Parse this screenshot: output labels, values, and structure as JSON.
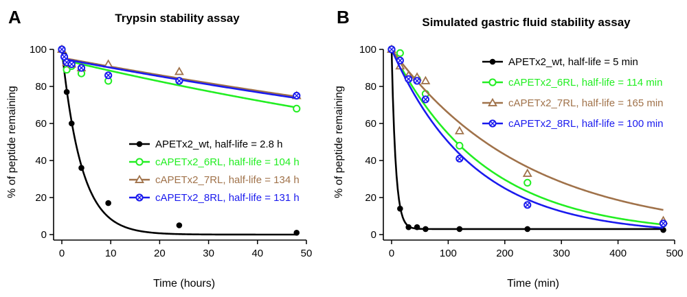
{
  "colors": {
    "wt": "#000000",
    "6RL": "#22ee22",
    "7RL": "#a0724a",
    "8RL": "#1a1aee",
    "axis": "#000000"
  },
  "chart_data": [
    {
      "type": "scatter",
      "panel_label": "A",
      "title": "Trypsin stability assay",
      "xlabel": "Time (hours)",
      "ylabel": "% of peptide remaining",
      "xlim": [
        0,
        50
      ],
      "ylim": [
        0,
        100
      ],
      "xticks": [
        0,
        10,
        20,
        30,
        40,
        50
      ],
      "yticks": [
        0,
        20,
        40,
        60,
        80,
        100
      ],
      "grid": false,
      "legend_position": "lower-right",
      "series": [
        {
          "name": "APETx2_wt",
          "label": "APETx2_wt, half-life = 2.8 h",
          "color_key": "wt",
          "marker": "filled-circle",
          "fit": "exponential-decay",
          "half_life": 2.8,
          "plateau": 0,
          "x": [
            0,
            0.5,
            1,
            2,
            4,
            9.5,
            24,
            48
          ],
          "y": [
            100,
            97,
            77,
            60,
            36,
            17,
            5,
            1
          ]
        },
        {
          "name": "cAPETx2_6RL",
          "label": "cAPETx2_6RL, half-life = 104 h",
          "color_key": "6RL",
          "marker": "open-circle",
          "fit": "exponential-decay",
          "half_life": 104,
          "plateau": 0,
          "y0": 94.5,
          "x": [
            0,
            1,
            2,
            4,
            9.5,
            24,
            48
          ],
          "y": [
            100,
            89,
            91,
            87,
            83,
            83,
            68
          ]
        },
        {
          "name": "cAPETx2_7RL",
          "label": "cAPETx2_7RL, half-life = 134 h",
          "color_key": "7RL",
          "marker": "open-triangle",
          "fit": "exponential-decay",
          "half_life": 134,
          "plateau": 0,
          "y0": 95.5,
          "x": [
            0,
            1,
            2,
            4,
            9.5,
            24,
            48
          ],
          "y": [
            100,
            93,
            92,
            90,
            92,
            88,
            75
          ]
        },
        {
          "name": "cAPETx2_8RL",
          "label": "cAPETx2_8RL, half-life = 131 h",
          "color_key": "8RL",
          "marker": "crossed-circle",
          "fit": "exponential-decay",
          "half_life": 131,
          "plateau": 0,
          "y0": 95,
          "x": [
            0,
            0.5,
            1,
            2,
            4,
            9.5,
            24,
            48
          ],
          "y": [
            100,
            96,
            93,
            92,
            90,
            86,
            83,
            75
          ]
        }
      ]
    },
    {
      "type": "scatter",
      "panel_label": "B",
      "title": "Simulated gastric fluid stability assay",
      "xlabel": "Time (min)",
      "ylabel": "% of peptide remaining",
      "xlim": [
        0,
        500
      ],
      "ylim": [
        0,
        100
      ],
      "xticks": [
        0,
        100,
        200,
        300,
        400,
        500
      ],
      "yticks": [
        0,
        20,
        40,
        60,
        80,
        100
      ],
      "grid": false,
      "legend_position": "upper-right",
      "series": [
        {
          "name": "APETx2_wt",
          "label": "APETx2_wt, half-life = 5 min",
          "color_key": "wt",
          "marker": "filled-circle",
          "fit": "exponential-decay",
          "half_life": 5,
          "plateau": 3,
          "x": [
            0,
            15,
            30,
            45,
            60,
            120,
            240,
            480
          ],
          "y": [
            100,
            14,
            4,
            4,
            3,
            3,
            3,
            2.5
          ]
        },
        {
          "name": "cAPETx2_6RL",
          "label": "cAPETx2_6RL, half-life = 114 min",
          "color_key": "6RL",
          "marker": "open-circle",
          "fit": "exponential-decay",
          "half_life": 114,
          "plateau": 0,
          "x": [
            0,
            15,
            30,
            45,
            60,
            120,
            240,
            480
          ],
          "y": [
            100,
            98,
            85,
            84,
            76,
            48,
            28,
            6
          ]
        },
        {
          "name": "cAPETx2_7RL",
          "label": "cAPETx2_7RL, half-life = 165 min",
          "color_key": "7RL",
          "marker": "open-triangle",
          "fit": "exponential-decay",
          "half_life": 165,
          "plateau": 0,
          "x": [
            0,
            15,
            30,
            45,
            60,
            120,
            240,
            480
          ],
          "y": [
            100,
            91,
            86,
            85,
            83,
            56,
            33,
            7.5
          ]
        },
        {
          "name": "cAPETx2_8RL",
          "label": "cAPETx2_8RL, half-life = 100 min",
          "color_key": "8RL",
          "marker": "crossed-circle",
          "fit": "exponential-decay",
          "half_life": 100,
          "plateau": 0,
          "x": [
            0,
            15,
            30,
            45,
            60,
            120,
            240,
            480
          ],
          "y": [
            100,
            94,
            84,
            83,
            73,
            41,
            16,
            6
          ]
        }
      ]
    }
  ]
}
